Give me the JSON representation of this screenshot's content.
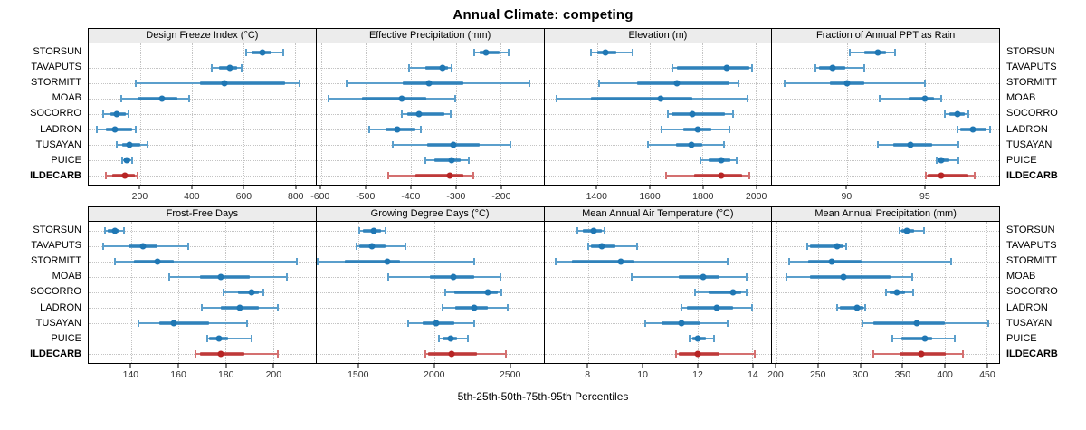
{
  "title": "Annual Climate: competing",
  "caption": "5th-25th-50th-75th-95th Percentiles",
  "sites": [
    "STORSUN",
    "TAVAPUTS",
    "STORMITT",
    "MOAB",
    "SOCORRO",
    "LADRON",
    "TUSAYAN",
    "PUICE",
    "ILDECARB"
  ],
  "highlight_site": "ILDECARB",
  "percentiles": [
    "5th",
    "25th",
    "50th",
    "75th",
    "95th"
  ],
  "colors": {
    "blue": "#1f77b4",
    "blue_light": "#5b9fcc",
    "red": "#b72424",
    "red_light": "#d47070",
    "strip_bg": "#ececec",
    "grid_line": "#c4c4c4",
    "border": "#000000"
  },
  "chart_data": [
    {
      "type": "interval-dotplot",
      "row": 1,
      "title": "Design Freeze Index (°C)",
      "xticks": [
        200,
        400,
        600,
        800
      ],
      "xlim": [
        0,
        880
      ],
      "series": [
        {
          "name": "STORSUN",
          "values": [
            610,
            632,
            674,
            708,
            754
          ]
        },
        {
          "name": "TAVAPUTS",
          "values": [
            477,
            506,
            547,
            575,
            593
          ]
        },
        {
          "name": "STORMITT",
          "values": [
            183,
            430,
            526,
            760,
            818
          ]
        },
        {
          "name": "MOAB",
          "values": [
            125,
            188,
            283,
            344,
            391
          ]
        },
        {
          "name": "SOCORRO",
          "values": [
            56,
            85,
            108,
            145,
            155
          ]
        },
        {
          "name": "LADRON",
          "values": [
            33,
            67,
            102,
            170,
            184
          ]
        },
        {
          "name": "TUSAYAN",
          "values": [
            108,
            131,
            157,
            200,
            229
          ]
        },
        {
          "name": "PUICE",
          "values": [
            131,
            136,
            148,
            160,
            168
          ]
        },
        {
          "name": "ILDECARB",
          "values": [
            67,
            90,
            142,
            180,
            188
          ]
        }
      ]
    },
    {
      "type": "interval-dotplot",
      "row": 1,
      "title": "Effective Precipitation (mm)",
      "xticks": [
        -600,
        -500,
        -400,
        -300,
        -200
      ],
      "xlim": [
        -610,
        -105
      ],
      "series": [
        {
          "name": "STORSUN",
          "values": [
            -259,
            -247,
            -232,
            -203,
            -183
          ]
        },
        {
          "name": "TAVAPUTS",
          "values": [
            -405,
            -368,
            -330,
            -318,
            -310
          ]
        },
        {
          "name": "STORMITT",
          "values": [
            -543,
            -419,
            -360,
            -283,
            -137
          ]
        },
        {
          "name": "MOAB",
          "values": [
            -583,
            -509,
            -421,
            -365,
            -302
          ]
        },
        {
          "name": "SOCORRO",
          "values": [
            -420,
            -408,
            -381,
            -325,
            -312
          ]
        },
        {
          "name": "LADRON",
          "values": [
            -493,
            -457,
            -430,
            -390,
            -378
          ]
        },
        {
          "name": "TUSAYAN",
          "values": [
            -441,
            -363,
            -305,
            -247,
            -178
          ]
        },
        {
          "name": "PUICE",
          "values": [
            -367,
            -347,
            -310,
            -290,
            -271
          ]
        },
        {
          "name": "ILDECARB",
          "values": [
            -451,
            -390,
            -313,
            -283,
            -261
          ]
        }
      ]
    },
    {
      "type": "interval-dotplot",
      "row": 1,
      "title": "Elevation (m)",
      "xticks": [
        1400,
        1600,
        1800,
        2000
      ],
      "xlim": [
        1200,
        2060
      ],
      "series": [
        {
          "name": "STORSUN",
          "values": [
            1375,
            1402,
            1433,
            1474,
            1535
          ]
        },
        {
          "name": "TAVAPUTS",
          "values": [
            1687,
            1701,
            1892,
            1977,
            1986
          ]
        },
        {
          "name": "STORMITT",
          "values": [
            1408,
            1551,
            1704,
            1900,
            1936
          ]
        },
        {
          "name": "MOAB",
          "values": [
            1247,
            1375,
            1640,
            1761,
            1971
          ]
        },
        {
          "name": "SOCORRO",
          "values": [
            1667,
            1681,
            1761,
            1883,
            1916
          ]
        },
        {
          "name": "LADRON",
          "values": [
            1645,
            1728,
            1780,
            1833,
            1900
          ]
        },
        {
          "name": "TUSAYAN",
          "values": [
            1592,
            1700,
            1758,
            1800,
            1880
          ]
        },
        {
          "name": "PUICE",
          "values": [
            1791,
            1822,
            1869,
            1906,
            1929
          ]
        },
        {
          "name": "ILDECARB",
          "values": [
            1662,
            1767,
            1870,
            1949,
            1977
          ]
        }
      ]
    },
    {
      "type": "interval-dotplot",
      "row": 1,
      "title": "Fraction of Annual PPT as Rain",
      "xticks": [
        90,
        95
      ],
      "xlim": [
        85.2,
        99.8
      ],
      "series": [
        {
          "name": "STORSUN",
          "values": [
            90.2,
            91.1,
            92.0,
            92.5,
            93.1
          ]
        },
        {
          "name": "TAVAPUTS",
          "values": [
            88.0,
            88.2,
            89.1,
            89.9,
            91.1
          ]
        },
        {
          "name": "STORMITT",
          "values": [
            86.0,
            88.9,
            90.0,
            91.1,
            95.0
          ]
        },
        {
          "name": "MOAB",
          "values": [
            92.1,
            94.0,
            95.0,
            95.6,
            96.1
          ]
        },
        {
          "name": "SOCORRO",
          "values": [
            96.3,
            96.6,
            97.1,
            97.6,
            97.8
          ]
        },
        {
          "name": "LADRON",
          "values": [
            97.1,
            97.3,
            98.1,
            99.0,
            99.2
          ]
        },
        {
          "name": "TUSAYAN",
          "values": [
            92.0,
            93.0,
            94.1,
            95.5,
            97.2
          ]
        },
        {
          "name": "PUICE",
          "values": [
            95.8,
            95.9,
            96.1,
            96.6,
            97.2
          ]
        },
        {
          "name": "ILDECARB",
          "values": [
            95.1,
            95.2,
            96.1,
            97.8,
            98.2
          ]
        }
      ]
    },
    {
      "type": "interval-dotplot",
      "row": 2,
      "title": "Frost-Free Days",
      "xticks": [
        140,
        160,
        180,
        200
      ],
      "xlim": [
        122,
        218
      ],
      "series": [
        {
          "name": "STORSUN",
          "values": [
            129,
            130,
            133,
            135,
            137
          ]
        },
        {
          "name": "TAVAPUTS",
          "values": [
            128,
            139,
            145,
            151,
            164
          ]
        },
        {
          "name": "STORMITT",
          "values": [
            133,
            141,
            151,
            158,
            210
          ]
        },
        {
          "name": "MOAB",
          "values": [
            156,
            169,
            178,
            190,
            206
          ]
        },
        {
          "name": "SOCORRO",
          "values": [
            179,
            185,
            191,
            194,
            196
          ]
        },
        {
          "name": "LADRON",
          "values": [
            170,
            178,
            186,
            194,
            202
          ]
        },
        {
          "name": "TUSAYAN",
          "values": [
            143,
            152,
            158,
            173,
            189
          ]
        },
        {
          "name": "PUICE",
          "values": [
            172,
            173,
            177,
            181,
            191
          ]
        },
        {
          "name": "ILDECARB",
          "values": [
            167,
            169,
            178,
            188,
            202
          ]
        }
      ]
    },
    {
      "type": "interval-dotplot",
      "row": 2,
      "title": "Growing Degree Days (°C)",
      "xticks": [
        1500,
        2000,
        2500
      ],
      "xlim": [
        1220,
        2725
      ],
      "series": [
        {
          "name": "STORSUN",
          "values": [
            1505,
            1530,
            1598,
            1645,
            1675
          ]
        },
        {
          "name": "TAVAPUTS",
          "values": [
            1487,
            1506,
            1585,
            1680,
            1810
          ]
        },
        {
          "name": "STORMITT",
          "values": [
            1230,
            1406,
            1692,
            1774,
            2264
          ]
        },
        {
          "name": "MOAB",
          "values": [
            1698,
            1972,
            2126,
            2264,
            2440
          ]
        },
        {
          "name": "SOCORRO",
          "values": [
            2075,
            2132,
            2353,
            2419,
            2447
          ]
        },
        {
          "name": "LADRON",
          "values": [
            2057,
            2142,
            2268,
            2358,
            2485
          ]
        },
        {
          "name": "TUSAYAN",
          "values": [
            1830,
            1925,
            2015,
            2132,
            2268
          ]
        },
        {
          "name": "PUICE",
          "values": [
            2032,
            2057,
            2108,
            2151,
            2223
          ]
        },
        {
          "name": "ILDECARB",
          "values": [
            1940,
            1962,
            2117,
            2283,
            2477
          ]
        }
      ]
    },
    {
      "type": "interval-dotplot",
      "row": 2,
      "title": "Mean Annual Air Temperature (°C)",
      "xticks": [
        8,
        10,
        12,
        14
      ],
      "xlim": [
        6.4,
        14.7
      ],
      "series": [
        {
          "name": "STORSUN",
          "values": [
            7.6,
            7.8,
            8.2,
            8.5,
            8.6
          ]
        },
        {
          "name": "TAVAPUTS",
          "values": [
            8.0,
            8.1,
            8.5,
            9.0,
            9.8
          ]
        },
        {
          "name": "STORMITT",
          "values": [
            6.8,
            7.4,
            9.2,
            9.7,
            13.1
          ]
        },
        {
          "name": "MOAB",
          "values": [
            9.6,
            11.3,
            12.2,
            12.8,
            13.8
          ]
        },
        {
          "name": "SOCORRO",
          "values": [
            11.9,
            12.4,
            13.3,
            13.6,
            13.8
          ]
        },
        {
          "name": "LADRON",
          "values": [
            11.4,
            11.6,
            12.7,
            13.3,
            14.0
          ]
        },
        {
          "name": "TUSAYAN",
          "values": [
            10.1,
            10.7,
            11.4,
            12.1,
            13.1
          ]
        },
        {
          "name": "PUICE",
          "values": [
            11.7,
            11.8,
            12.0,
            12.3,
            12.6
          ]
        },
        {
          "name": "ILDECARB",
          "values": [
            11.2,
            11.3,
            12.0,
            12.8,
            14.1
          ]
        }
      ]
    },
    {
      "type": "interval-dotplot",
      "row": 2,
      "title": "Mean Annual Precipitation (mm)",
      "xticks": [
        200,
        250,
        300,
        350,
        400,
        450
      ],
      "xlim": [
        195,
        465
      ],
      "series": [
        {
          "name": "STORSUN",
          "values": [
            347,
            349,
            355,
            364,
            376
          ]
        },
        {
          "name": "TAVAPUTS",
          "values": [
            237,
            240,
            272,
            280,
            283
          ]
        },
        {
          "name": "STORMITT",
          "values": [
            215,
            238,
            266,
            301,
            408
          ]
        },
        {
          "name": "MOAB",
          "values": [
            212,
            240,
            280,
            336,
            362
          ]
        },
        {
          "name": "SOCORRO",
          "values": [
            330,
            335,
            343,
            353,
            363
          ]
        },
        {
          "name": "LADRON",
          "values": [
            272,
            275,
            296,
            303,
            306
          ]
        },
        {
          "name": "TUSAYAN",
          "values": [
            302,
            315,
            367,
            400,
            452
          ]
        },
        {
          "name": "PUICE",
          "values": [
            338,
            349,
            377,
            385,
            412
          ]
        },
        {
          "name": "ILDECARB",
          "values": [
            315,
            347,
            372,
            402,
            422
          ]
        }
      ]
    }
  ]
}
